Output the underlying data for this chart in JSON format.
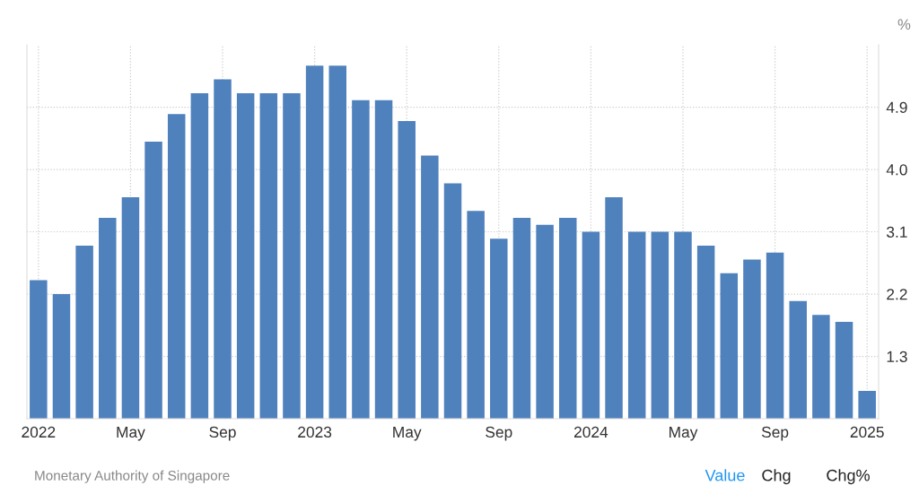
{
  "chart_data": {
    "type": "bar",
    "ylabel": "%",
    "categories": [
      "2022",
      null,
      null,
      null,
      "May",
      null,
      null,
      null,
      "Sep",
      null,
      null,
      null,
      "2023",
      null,
      null,
      null,
      "May",
      null,
      null,
      null,
      "Sep",
      null,
      null,
      null,
      "2024",
      null,
      null,
      null,
      "May",
      null,
      null,
      null,
      "Sep",
      null,
      null,
      null,
      "2025"
    ],
    "values": [
      2.4,
      2.2,
      2.9,
      3.3,
      3.6,
      4.4,
      4.8,
      5.1,
      5.3,
      5.1,
      5.1,
      5.1,
      5.5,
      5.5,
      5.0,
      5.0,
      4.7,
      4.2,
      3.8,
      3.4,
      3.0,
      3.3,
      3.2,
      3.3,
      3.1,
      3.6,
      3.1,
      3.1,
      3.1,
      2.9,
      2.5,
      2.7,
      2.8,
      2.1,
      1.9,
      1.8,
      0.8
    ],
    "color": "#4f81bd",
    "ylim": [
      0.4,
      5.8
    ],
    "yticks": [
      1.3,
      2.2,
      3.1,
      {
        "value": 4.0,
        "label": "4.0"
      },
      4.9
    ],
    "grid": true,
    "legend": false,
    "annotations": [
      "Monetary Authority of Singapore",
      "Value",
      "Chg",
      "Chg%"
    ]
  }
}
